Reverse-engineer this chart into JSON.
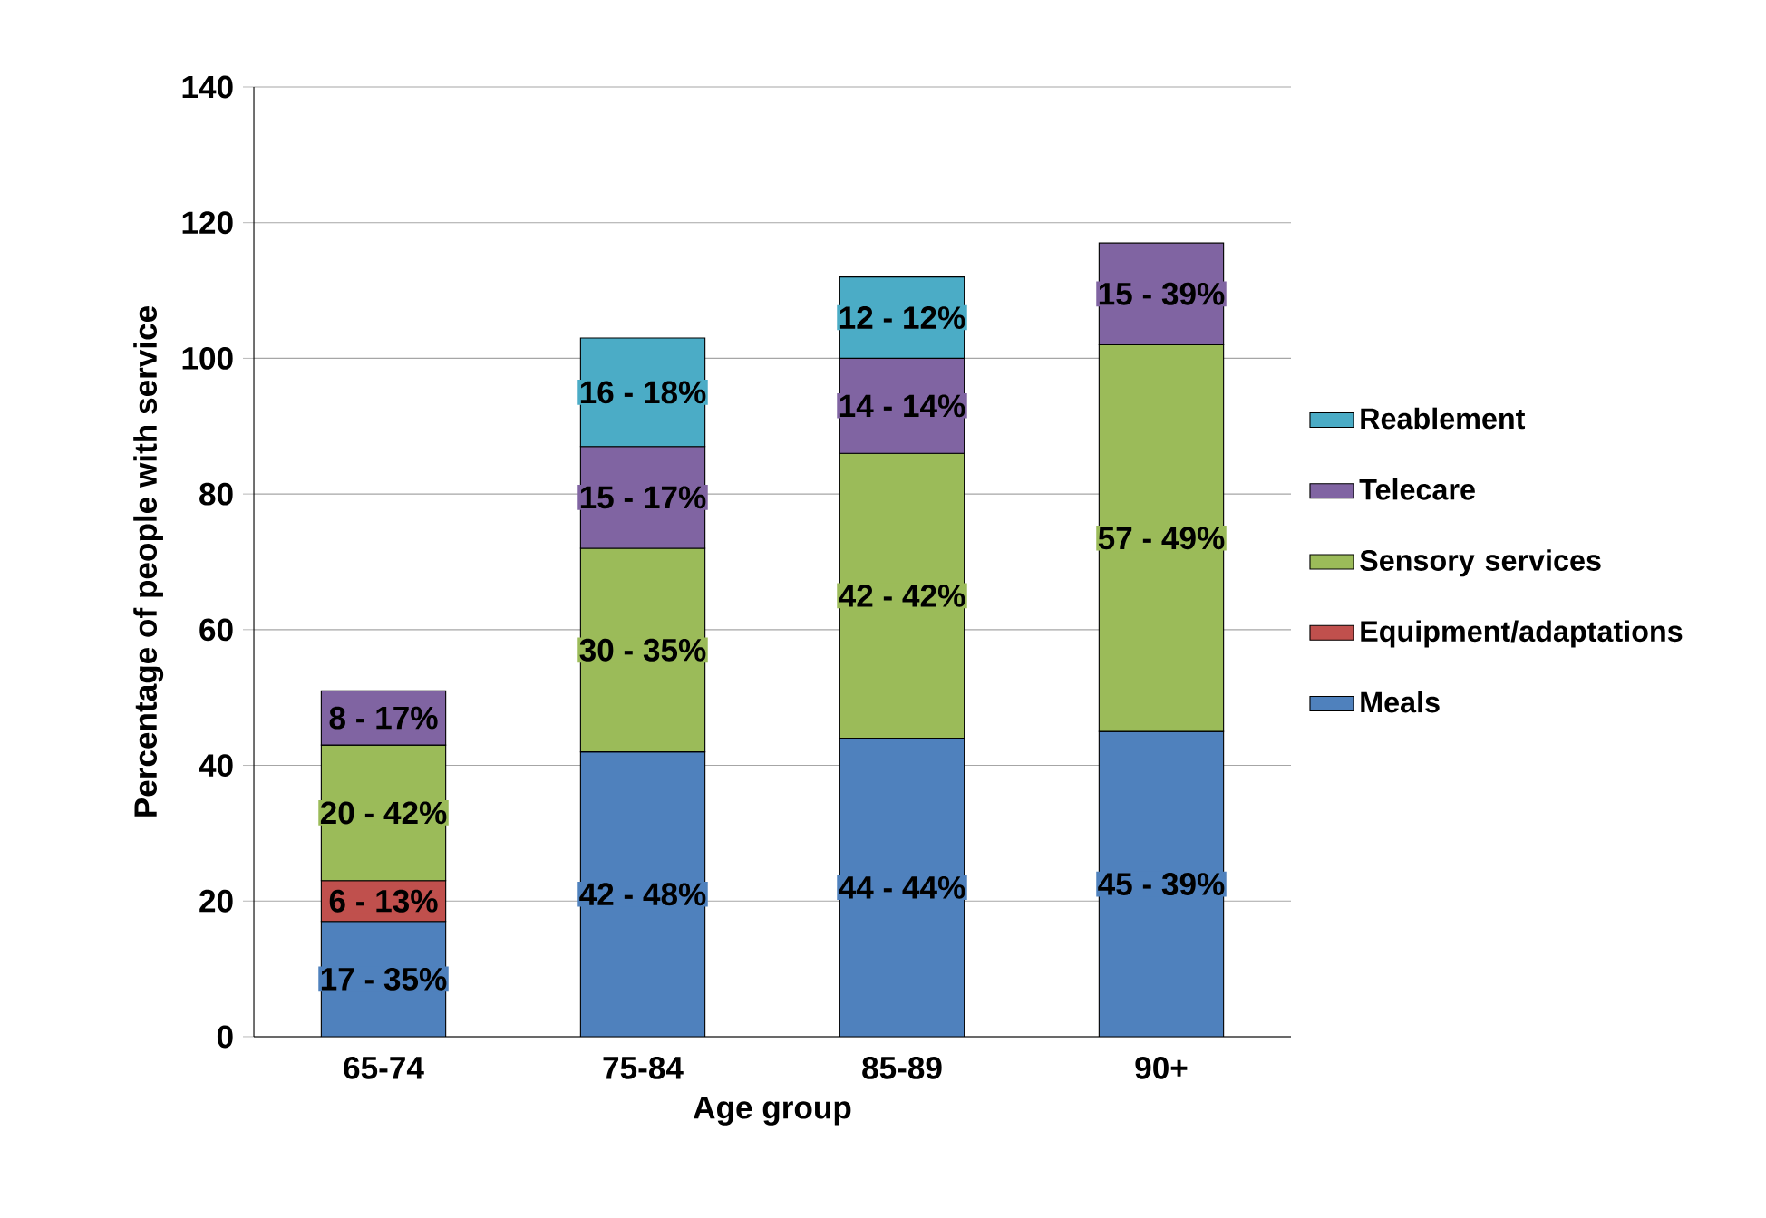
{
  "chart_data": {
    "type": "bar",
    "stacked": true,
    "xlabel": "Age group",
    "ylabel": "Percentage of people with service",
    "categories": [
      "65-74",
      "75-84",
      "85-89",
      "90+"
    ],
    "series": [
      {
        "name": "Meals",
        "color": "#4f81bd",
        "values": [
          17,
          42,
          44,
          45
        ],
        "value_labels": [
          "17 - 35%",
          "42 - 48%",
          "44 - 44%",
          "45 - 39%"
        ]
      },
      {
        "name": "Equipment/adaptations",
        "color": "#c0504d",
        "values": [
          6,
          null,
          null,
          null
        ],
        "value_labels": [
          "6 - 13%",
          null,
          null,
          null
        ]
      },
      {
        "name": "Sensory services",
        "color": "#9bbb59",
        "values": [
          20,
          30,
          42,
          57
        ],
        "value_labels": [
          "20 - 42%",
          "30 - 35%",
          "42 - 42%",
          "57 - 49%"
        ]
      },
      {
        "name": "Telecare",
        "color": "#8064a2",
        "values": [
          8,
          15,
          14,
          15
        ],
        "value_labels": [
          "8 - 17%",
          "15 - 17%",
          "14 - 14%",
          "15 - 39%"
        ]
      },
      {
        "name": "Reablement",
        "color": "#4bacc6",
        "values": [
          null,
          16,
          12,
          null
        ],
        "value_labels": [
          null,
          "16 - 18%",
          "12 - 12%",
          null
        ]
      }
    ],
    "ylim": [
      0,
      140
    ],
    "yticks": [
      0,
      20,
      40,
      60,
      80,
      100,
      120,
      140
    ],
    "grid": "y",
    "legend": "right"
  }
}
